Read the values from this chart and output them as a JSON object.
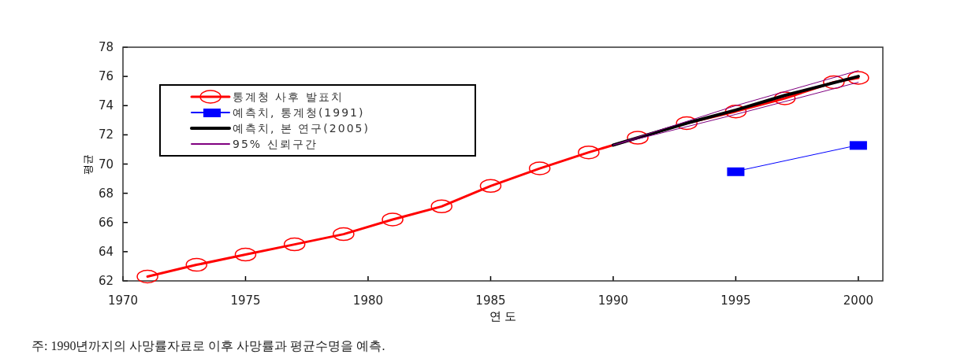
{
  "chart_data": {
    "type": "line",
    "xlabel": "연 도",
    "ylabel": "평균",
    "annotations": [
      "주: 1990년까지의 사망률자료로 이후 사망률과 평균수명을 예측."
    ],
    "xlim": [
      1970,
      2001
    ],
    "xticks": [
      1970,
      1975,
      1980,
      1985,
      1990,
      1995,
      2000
    ],
    "ylim": [
      62,
      78
    ],
    "yticks": [
      62,
      64,
      66,
      68,
      70,
      72,
      74,
      76,
      78
    ],
    "grid": false,
    "legend": "top left",
    "series": [
      {
        "name": "통계청 사후 발표치",
        "color": "#ff0000",
        "marker": "circle",
        "x": [
          1971,
          1973,
          1975,
          1977,
          1979,
          1981,
          1983,
          1985,
          1987,
          1989,
          1991,
          1993,
          1995,
          1997,
          1999,
          2000
        ],
        "values": [
          62.3,
          63.1,
          63.8,
          64.5,
          65.2,
          66.2,
          67.1,
          68.5,
          69.7,
          70.8,
          71.8,
          72.8,
          73.6,
          74.5,
          75.6,
          75.9
        ]
      },
      {
        "name": "예측치, 통계청(1991)",
        "color": "#0000ff",
        "marker": "square",
        "x": [
          1995,
          2000
        ],
        "values": [
          69.5,
          71.3
        ]
      },
      {
        "name": "예측치, 본 연구(2005)",
        "color": "#000000",
        "marker": "none",
        "x": [
          1990,
          1993,
          1995,
          1997,
          2000
        ],
        "values": [
          71.3,
          72.8,
          73.7,
          74.7,
          76.0
        ]
      },
      {
        "name": "95% 신뢰구간",
        "color": "#800080",
        "marker": "none",
        "x": [
          1990,
          1995,
          2000
        ],
        "values": [
          71.3,
          74.0,
          76.4
        ]
      },
      {
        "color": "#800080",
        "marker": "none",
        "x": [
          1990,
          1995,
          2000
        ],
        "values": [
          71.3,
          73.4,
          75.6
        ]
      }
    ]
  }
}
